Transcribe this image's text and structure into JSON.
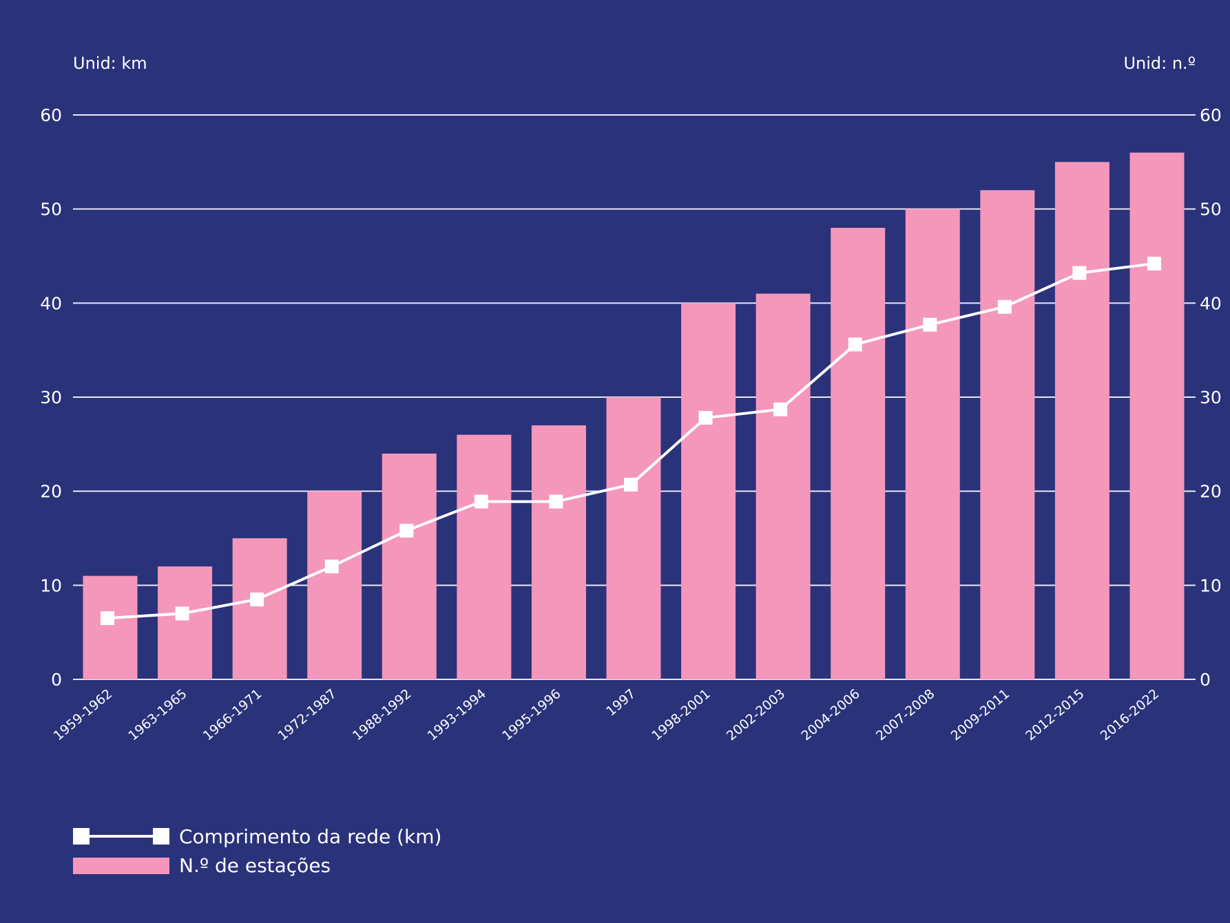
{
  "colors": {
    "background": "#2a327a",
    "bar": "#f497bb",
    "line": "#ffffff",
    "grid": "#ffffff"
  },
  "chart_data": {
    "type": "bar",
    "categories": [
      "1959-1962",
      "1963-1965",
      "1966-1971",
      "1972-1987",
      "1988-1992",
      "1993-1994",
      "1995-1996",
      "1997",
      "1998-2001",
      "2002-2003",
      "2004-2006",
      "2007-2008",
      "2009-2011",
      "2012-2015",
      "2016-2022"
    ],
    "series": [
      {
        "name": "N.º de estações",
        "type": "bar",
        "axis": "right",
        "values": [
          11,
          12,
          15,
          20,
          24,
          26,
          27,
          30,
          40,
          41,
          48,
          50,
          52,
          55,
          56
        ]
      },
      {
        "name": "Comprimento da rede (km)",
        "type": "line",
        "axis": "left",
        "marker": "square",
        "values": [
          6.5,
          7.0,
          8.5,
          12.0,
          15.8,
          18.9,
          18.9,
          20.7,
          27.8,
          28.7,
          35.6,
          37.7,
          39.6,
          43.2,
          44.2
        ]
      }
    ],
    "left_axis": {
      "unit_label": "Unid: km",
      "ylim": [
        0,
        60
      ],
      "ticks": [
        0,
        10,
        20,
        30,
        40,
        50,
        60
      ]
    },
    "right_axis": {
      "unit_label": "Unid: n.º",
      "ylim": [
        0,
        60
      ],
      "ticks": [
        0,
        10,
        20,
        30,
        40,
        50,
        60
      ]
    },
    "grid": true,
    "legend_position": "bottom-left"
  }
}
